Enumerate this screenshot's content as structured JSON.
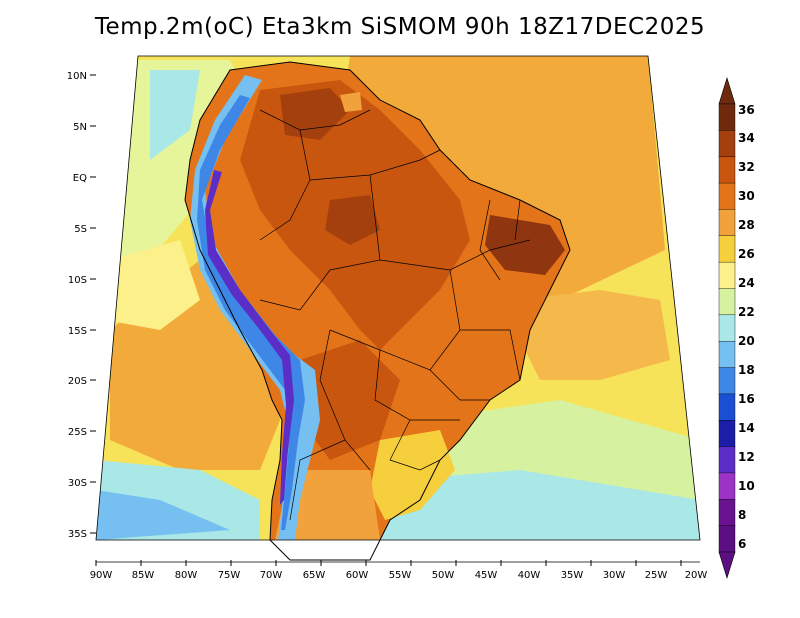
{
  "title": "Temp.2m(oC) Eta3km SiSMOM 90h 18Z17DEC2025",
  "latitude_labels": [
    "10N",
    "5N",
    "EQ",
    "5S",
    "10S",
    "15S",
    "20S",
    "25S",
    "30S",
    "35S"
  ],
  "longitude_labels": [
    "90W",
    "85W",
    "80W",
    "75W",
    "70W",
    "65W",
    "60W",
    "55W",
    "50W",
    "45W",
    "40W",
    "35W",
    "30W",
    "25W",
    "20W"
  ],
  "colorbar": {
    "labels": [
      "36",
      "34",
      "32",
      "30",
      "28",
      "26",
      "24",
      "22",
      "20",
      "18",
      "16",
      "14",
      "12",
      "10",
      "8",
      "6"
    ],
    "colors": [
      "#6f2a0e",
      "#a3400e",
      "#c9560f",
      "#e47419",
      "#f2a23c",
      "#f6cf3d",
      "#fbf08a",
      "#d6f2a0",
      "#a9e8e6",
      "#75c0f0",
      "#3f87e6",
      "#1a4fd3",
      "#1d1ea8",
      "#5b2ec7",
      "#9b34c6",
      "#6a138f",
      "#5b0f80"
    ]
  },
  "palette": {
    "ocean_light": "#f7e35a",
    "ocean_warm": "#f2ab3b",
    "land_hot": "#c9560f",
    "land_very_hot": "#8f3510",
    "andes_cold": "#3f87e6",
    "andes_very_cold": "#5b2ec7",
    "southern_cool": "#a9e8e6"
  }
}
